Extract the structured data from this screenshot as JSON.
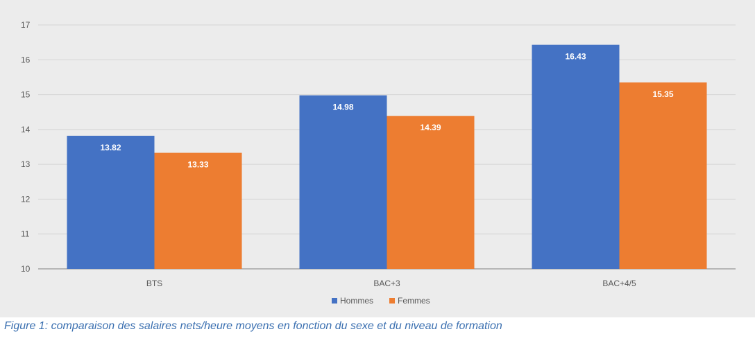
{
  "caption": "Figure 1: comparaison des salaires nets/heure moyens en fonction du sexe et du niveau de formation",
  "colors": {
    "hommes": "#4472c4",
    "femmes": "#ed7d31",
    "grid": "#d4d4d4",
    "axis": "#7f7f7f"
  },
  "chart_data": {
    "type": "bar",
    "categories": [
      "BTS",
      "BAC+3",
      "BAC+4/5"
    ],
    "series": [
      {
        "name": "Hommes",
        "values": [
          13.82,
          14.98,
          16.43
        ]
      },
      {
        "name": "Femmes",
        "values": [
          13.33,
          14.39,
          15.35
        ]
      }
    ],
    "ylim": [
      10,
      17
    ],
    "yticks": [
      10,
      11,
      12,
      13,
      14,
      15,
      16,
      17
    ],
    "grid": true,
    "legend": "bottom",
    "data_labels": true
  }
}
